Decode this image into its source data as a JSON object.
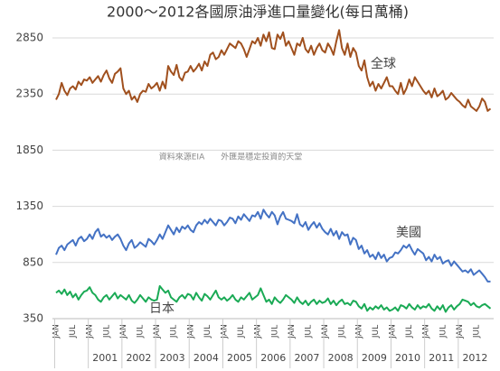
{
  "chart_data": {
    "type": "line",
    "title": "2000～2012各國原油淨進口量變化(每日萬桶)",
    "annotations": [
      "全球",
      "美國",
      "日本"
    ],
    "source_note": "資料來源EIA　　外匯是穩定投資的天堂",
    "categories": [
      "JAN",
      null,
      null,
      null,
      null,
      null,
      "JUL",
      null,
      null,
      null,
      null,
      null,
      "JAN",
      null,
      null,
      null,
      null,
      null,
      "JUL",
      null,
      null,
      null,
      null,
      null,
      "JAN",
      null,
      null,
      null,
      null,
      null,
      "JUL",
      null,
      null,
      null,
      null,
      null,
      "JAN",
      null,
      null,
      null,
      null,
      null,
      "JUL",
      null,
      null,
      null,
      null,
      null,
      "JAN",
      null,
      null,
      null,
      null,
      null,
      "JUL",
      null,
      null,
      null,
      null,
      null,
      "JAN",
      null,
      null,
      null,
      null,
      null,
      "JUL",
      null,
      null,
      null,
      null,
      null,
      "JAN",
      null,
      null,
      null,
      null,
      null,
      "JUL",
      null,
      null,
      null,
      null,
      null,
      "JAN",
      null,
      null,
      null,
      null,
      null,
      "JUL",
      null,
      null,
      null,
      null,
      null,
      "JAN",
      null,
      null,
      null,
      null,
      null,
      "JUL",
      null,
      null,
      null,
      null,
      null,
      "JAN",
      null,
      null,
      null,
      null,
      null,
      "JUL",
      null,
      null,
      null,
      null,
      null,
      "JAN",
      null,
      null,
      null,
      null,
      null,
      "JUL",
      null,
      null,
      null,
      null,
      null,
      "JAN",
      null,
      null,
      null,
      null,
      null,
      "JUL",
      null,
      null,
      null,
      null,
      null,
      "JAN",
      null,
      null,
      null,
      null,
      null,
      "JUL",
      null,
      null,
      null,
      null,
      null
    ],
    "years": [
      null,
      "2001",
      "2002",
      "2003",
      "2004",
      "2005",
      "2006",
      "2007",
      "2008",
      "2009",
      "2010",
      "2011",
      "2012"
    ],
    "ylim": [
      350,
      2950
    ],
    "yticks": [
      350,
      850,
      1350,
      1850,
      2350,
      2850
    ],
    "grid": true,
    "series": [
      {
        "name": "全球",
        "color": "#a0501e",
        "values": [
          2300,
          2350,
          2450,
          2380,
          2340,
          2400,
          2420,
          2390,
          2460,
          2430,
          2480,
          2470,
          2500,
          2450,
          2480,
          2510,
          2460,
          2520,
          2560,
          2490,
          2450,
          2530,
          2550,
          2580,
          2400,
          2350,
          2380,
          2300,
          2330,
          2280,
          2350,
          2380,
          2370,
          2440,
          2400,
          2420,
          2450,
          2380,
          2460,
          2400,
          2600,
          2550,
          2520,
          2610,
          2500,
          2470,
          2540,
          2550,
          2600,
          2550,
          2580,
          2620,
          2560,
          2640,
          2600,
          2700,
          2720,
          2660,
          2680,
          2740,
          2700,
          2750,
          2800,
          2780,
          2760,
          2820,
          2800,
          2750,
          2680,
          2750,
          2820,
          2800,
          2850,
          2780,
          2880,
          2820,
          2900,
          2760,
          2750,
          2880,
          2840,
          2900,
          2780,
          2820,
          2760,
          2700,
          2800,
          2780,
          2850,
          2750,
          2720,
          2780,
          2700,
          2760,
          2800,
          2740,
          2720,
          2800,
          2760,
          2700,
          2820,
          2920,
          2760,
          2700,
          2800,
          2680,
          2760,
          2720,
          2600,
          2560,
          2650,
          2500,
          2420,
          2460,
          2380,
          2440,
          2400,
          2450,
          2500,
          2420,
          2420,
          2380,
          2350,
          2450,
          2350,
          2400,
          2480,
          2420,
          2500,
          2460,
          2420,
          2380,
          2350,
          2380,
          2320,
          2400,
          2330,
          2350,
          2380,
          2300,
          2320,
          2360,
          2330,
          2300,
          2280,
          2250,
          2230,
          2300,
          2240,
          2220,
          2200,
          2240,
          2310,
          2280,
          2200,
          2220
        ]
      },
      {
        "name": "美國",
        "color": "#4472c4",
        "values": [
          920,
          980,
          1000,
          960,
          1010,
          1030,
          1050,
          1000,
          1060,
          1080,
          1040,
          1060,
          1100,
          1060,
          1120,
          1150,
          1080,
          1100,
          1070,
          1090,
          1050,
          1080,
          1100,
          1060,
          1000,
          960,
          1020,
          1050,
          980,
          1000,
          1030,
          1010,
          990,
          1060,
          1040,
          1010,
          1050,
          1100,
          1060,
          1120,
          1180,
          1140,
          1100,
          1160,
          1120,
          1170,
          1150,
          1180,
          1140,
          1120,
          1180,
          1210,
          1190,
          1230,
          1200,
          1240,
          1210,
          1180,
          1230,
          1220,
          1180,
          1210,
          1250,
          1240,
          1200,
          1260,
          1230,
          1280,
          1250,
          1220,
          1270,
          1260,
          1300,
          1240,
          1320,
          1280,
          1250,
          1300,
          1270,
          1190,
          1260,
          1300,
          1240,
          1230,
          1220,
          1200,
          1280,
          1190,
          1170,
          1210,
          1140,
          1180,
          1210,
          1160,
          1200,
          1150,
          1120,
          1100,
          1150,
          1090,
          1130,
          1060,
          1120,
          1090,
          1100,
          1010,
          1070,
          1050,
          970,
          1000,
          930,
          960,
          900,
          920,
          880,
          940,
          890,
          920,
          860,
          890,
          900,
          940,
          930,
          960,
          1000,
          980,
          1010,
          960,
          920,
          970,
          950,
          930,
          870,
          900,
          860,
          920,
          880,
          900,
          840,
          860,
          870,
          820,
          860,
          830,
          800,
          770,
          780,
          760,
          790,
          740,
          760,
          780,
          750,
          720,
          680,
          680
        ]
      },
      {
        "name": "日本",
        "color": "#1aaa55",
        "values": [
          580,
          600,
          570,
          610,
          560,
          590,
          540,
          570,
          520,
          560,
          590,
          600,
          630,
          580,
          560,
          520,
          500,
          540,
          560,
          520,
          550,
          580,
          530,
          560,
          540,
          520,
          560,
          510,
          490,
          520,
          560,
          530,
          500,
          540,
          520,
          510,
          520,
          640,
          610,
          580,
          600,
          540,
          520,
          500,
          540,
          560,
          530,
          570,
          560,
          520,
          580,
          540,
          510,
          570,
          550,
          520,
          560,
          600,
          540,
          520,
          540,
          510,
          530,
          560,
          520,
          500,
          540,
          520,
          550,
          580,
          520,
          540,
          560,
          620,
          560,
          500,
          520,
          480,
          540,
          510,
          490,
          520,
          560,
          540,
          520,
          490,
          540,
          500,
          480,
          510,
          470,
          500,
          520,
          480,
          510,
          490,
          500,
          530,
          480,
          510,
          470,
          500,
          520,
          480,
          490,
          470,
          510,
          500,
          460,
          440,
          480,
          420,
          450,
          430,
          460,
          440,
          470,
          430,
          450,
          420,
          430,
          450,
          420,
          470,
          460,
          440,
          480,
          450,
          430,
          470,
          440,
          460,
          450,
          480,
          440,
          420,
          460,
          430,
          470,
          410,
          450,
          470,
          430,
          460,
          480,
          520,
          510,
          500,
          470,
          490,
          460,
          450,
          470,
          480,
          460,
          440
        ]
      }
    ]
  }
}
